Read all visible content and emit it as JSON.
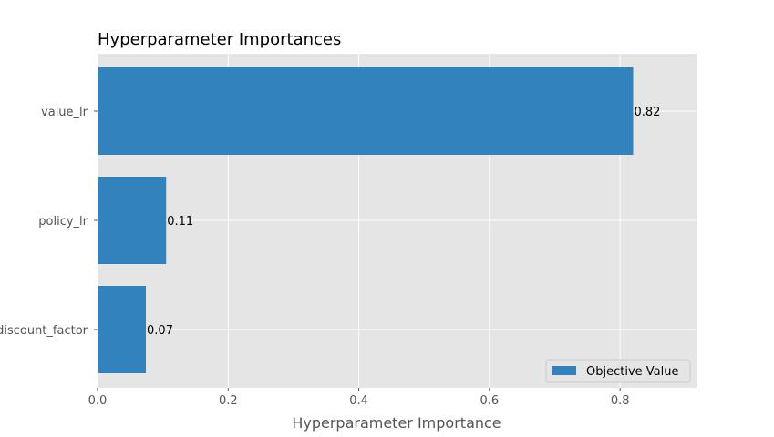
{
  "chart_data": {
    "type": "bar",
    "orientation": "horizontal",
    "title": "Hyperparameter Importances",
    "xlabel": "Hyperparameter Importance",
    "ylabel": "",
    "categories": [
      "value_lr",
      "policy_lr",
      "discount_factor"
    ],
    "series": [
      {
        "name": "Objective Value",
        "values": [
          0.82,
          0.105,
          0.074
        ],
        "labels": [
          "0.82",
          "0.11",
          "0.07"
        ]
      }
    ],
    "xlim": [
      0,
      0.917
    ],
    "xticks": [
      0.0,
      0.2,
      0.4,
      0.6,
      0.8
    ],
    "xtick_labels": [
      "0.0",
      "0.2",
      "0.4",
      "0.6",
      "0.8"
    ],
    "grid": true,
    "legend_position": "bottom-right",
    "colors": {
      "bar": "#3182bd",
      "plot_bg": "#e5e5e5",
      "grid": "#ffffff"
    }
  }
}
